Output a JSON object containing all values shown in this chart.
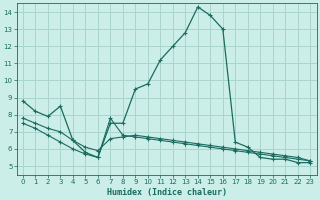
{
  "title": "",
  "xlabel": "Humidex (Indice chaleur)",
  "ylabel": "",
  "background_color": "#cceee8",
  "grid_color": "#aad4ce",
  "line_color": "#1a6b60",
  "ylim": [
    4.5,
    14.5
  ],
  "xlim": [
    -0.5,
    23.5
  ],
  "yticks": [
    5,
    6,
    7,
    8,
    9,
    10,
    11,
    12,
    13,
    14
  ],
  "xticks": [
    0,
    1,
    2,
    3,
    4,
    5,
    6,
    7,
    8,
    9,
    10,
    11,
    12,
    13,
    14,
    15,
    16,
    17,
    18,
    19,
    20,
    21,
    22,
    23
  ],
  "curve1_x": [
    0,
    1,
    2,
    3,
    4,
    5,
    6,
    7,
    8,
    9,
    10,
    11,
    12,
    13,
    14,
    15,
    16,
    17,
    18,
    19,
    20,
    21,
    22,
    23
  ],
  "curve1_y": [
    8.8,
    8.2,
    7.9,
    8.5,
    6.5,
    5.8,
    5.5,
    7.5,
    7.5,
    9.5,
    9.8,
    11.2,
    12.0,
    12.8,
    14.3,
    13.8,
    13.0,
    6.4,
    6.1,
    5.5,
    5.4,
    5.4,
    5.2,
    5.2
  ],
  "curve2_x": [
    0,
    1,
    2,
    3,
    4,
    5,
    6,
    7,
    8,
    9,
    10,
    11,
    12,
    13,
    14,
    15,
    16,
    17,
    18,
    19,
    20,
    21,
    22,
    23
  ],
  "curve2_y": [
    7.8,
    7.5,
    7.2,
    7.0,
    6.5,
    6.1,
    5.9,
    6.6,
    6.7,
    6.8,
    6.7,
    6.6,
    6.5,
    6.4,
    6.3,
    6.2,
    6.1,
    6.0,
    5.9,
    5.8,
    5.7,
    5.6,
    5.5,
    5.3
  ],
  "curve3_x": [
    0,
    1,
    2,
    3,
    4,
    5,
    6,
    7,
    8,
    9,
    10,
    11,
    12,
    13,
    14,
    15,
    16,
    17,
    18,
    19,
    20,
    21,
    22,
    23
  ],
  "curve3_y": [
    7.5,
    7.2,
    6.8,
    6.4,
    6.0,
    5.7,
    5.5,
    7.8,
    6.8,
    6.7,
    6.6,
    6.5,
    6.4,
    6.3,
    6.2,
    6.1,
    6.0,
    5.9,
    5.8,
    5.7,
    5.6,
    5.5,
    5.4,
    5.3
  ]
}
